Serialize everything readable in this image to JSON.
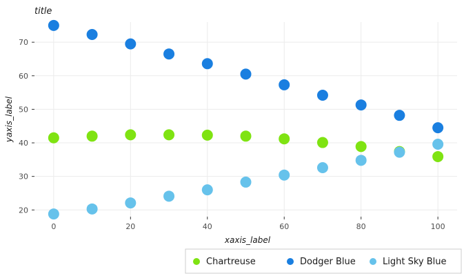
{
  "chart_data": {
    "type": "scatter",
    "title": "title",
    "xlabel": "xaxis_label",
    "ylabel": "yaxis_label",
    "xlim": [
      -5,
      105
    ],
    "ylim": [
      18,
      76
    ],
    "xticks": [
      0,
      20,
      40,
      60,
      80,
      100
    ],
    "yticks": [
      20,
      30,
      40,
      50,
      60,
      70
    ],
    "grid": true,
    "legend_position": "bottom-right",
    "x": [
      0,
      10,
      20,
      30,
      40,
      50,
      60,
      70,
      80,
      90,
      100
    ],
    "series": [
      {
        "name": "Chartreuse",
        "color": "#7fe312",
        "values": [
          41.5,
          42.0,
          42.4,
          42.4,
          42.3,
          42.0,
          41.2,
          40.1,
          38.9,
          37.4,
          35.9
        ]
      },
      {
        "name": "Dodger Blue",
        "color": "#1a7fe0",
        "values": [
          75.0,
          72.3,
          69.5,
          66.5,
          63.6,
          60.5,
          57.3,
          54.2,
          51.3,
          48.2,
          44.5
        ]
      },
      {
        "name": "Light Sky Blue",
        "color": "#66c2eb",
        "values": [
          18.8,
          20.3,
          22.1,
          24.1,
          26.0,
          28.3,
          30.4,
          32.6,
          34.8,
          37.2,
          39.6
        ]
      }
    ]
  }
}
